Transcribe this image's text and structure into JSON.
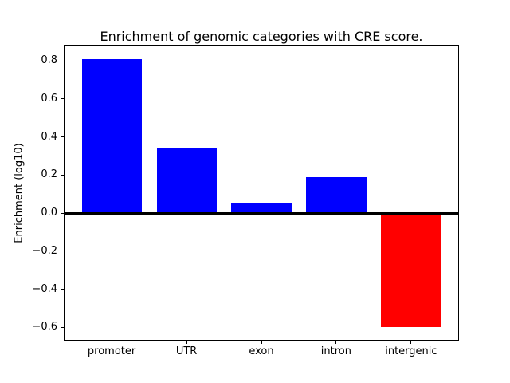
{
  "figure": {
    "background": "#ffffff"
  },
  "chart_data": {
    "type": "bar",
    "title": "Enrichment of genomic categories with CRE score.",
    "xlabel": "",
    "ylabel": "Enrichment (log10)",
    "categories": [
      "promoter",
      "UTR",
      "exon",
      "intron",
      "intergenic"
    ],
    "values": [
      0.81,
      0.345,
      0.053,
      0.187,
      -0.6
    ],
    "bar_colors": [
      "#0000ff",
      "#0000ff",
      "#0000ff",
      "#0000ff",
      "#ff0000"
    ],
    "positive_color": "#0000ff",
    "negative_color": "#ff0000",
    "ylim": [
      -0.67,
      0.88
    ],
    "yticks": [
      0.8,
      0.6,
      0.4,
      0.2,
      0.0,
      -0.2,
      -0.4,
      -0.6
    ],
    "ytick_labels": [
      "0.8",
      "0.6",
      "0.4",
      "0.2",
      "0.0",
      "−0.2",
      "−0.4",
      "−0.6"
    ],
    "zero_line": true,
    "grid": false,
    "legend": null,
    "bar_width_ratio": 0.8,
    "xlim": [
      -0.64,
      4.64
    ]
  }
}
